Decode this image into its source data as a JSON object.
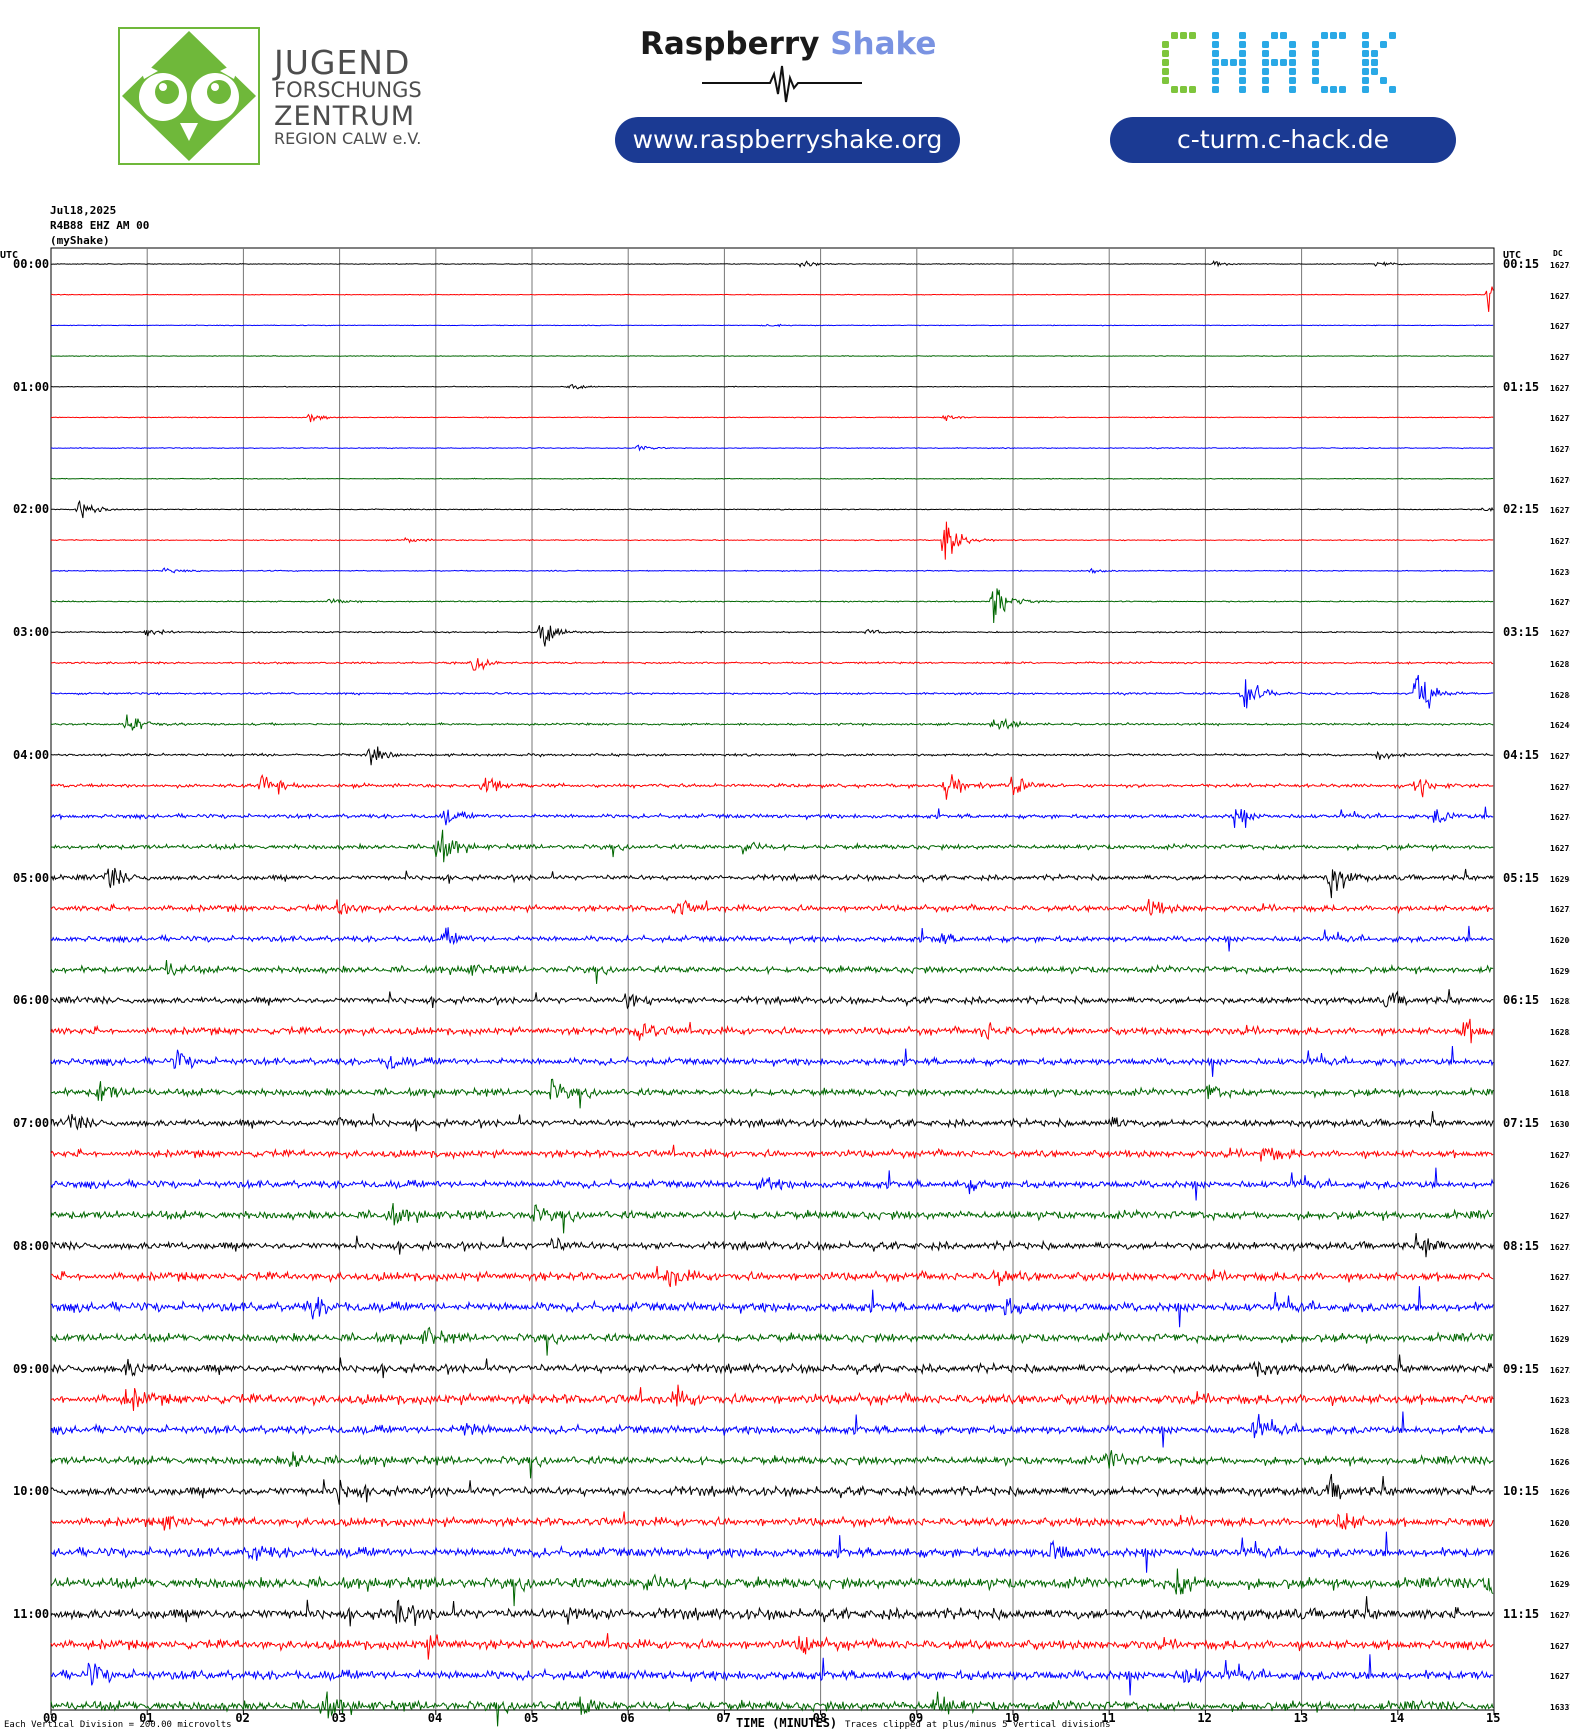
{
  "header": {
    "jfz": {
      "line1": "JUGEND",
      "line2": "FORSCHUNGS",
      "line3": "ZENTRUM",
      "line4": "REGION CALW e.V."
    },
    "raspberry": {
      "word1": "Raspberry",
      "word2": "Shake",
      "url": "www.raspberryshake.org"
    },
    "chack": {
      "logo_text": "CHACK",
      "url": "c-turm.c-hack.de"
    },
    "colors": {
      "jfz_green": "#6fb83a",
      "rs_blue": "#7a93e2",
      "pill_blue": "#1b3a93",
      "chack_green": "#7ec53c",
      "chack_cyan": "#2aa9e6"
    }
  },
  "plot_info": {
    "date": "Jul18,2025",
    "station": "R4B88 EHZ AM 00",
    "network": "(myShake)",
    "utc_left": "UTC",
    "utc_right": "UTC",
    "dc_header": "DC"
  },
  "footer": {
    "scale_note": "Each Vertical Division =  200.00 microvolts",
    "x_title": "TIME (MINUTES)",
    "clip_note": "Traces clipped at plus/minus 5 vertical divisions"
  },
  "chart_data": {
    "type": "helicorder",
    "x_ticks": [
      "00",
      "01",
      "02",
      "03",
      "04",
      "05",
      "06",
      "07",
      "08",
      "09",
      "10",
      "11",
      "12",
      "13",
      "14",
      "15"
    ],
    "x_range_minutes": [
      0,
      15
    ],
    "line_duration_minutes": 15,
    "trace_colors": [
      "#000000",
      "#ff0000",
      "#0000ff",
      "#006600"
    ],
    "left_time_labels": [
      "00:00",
      "01:00",
      "02:00",
      "03:00",
      "04:00",
      "05:00",
      "06:00",
      "07:00",
      "08:00",
      "09:00",
      "10:00",
      "11:00"
    ],
    "right_time_labels": [
      "00:15",
      "01:15",
      "02:15",
      "03:15",
      "04:15",
      "05:15",
      "06:15",
      "07:15",
      "08:15",
      "09:15",
      "10:15",
      "11:15"
    ],
    "dc_offsets": [
      "16275",
      "16275",
      "16277",
      "16277",
      "16275",
      "16277",
      "16276",
      "16276",
      "16277",
      "16278",
      "16236",
      "16279",
      "16279",
      "16281",
      "16284",
      "16246",
      "16279",
      "16276",
      "16274",
      "16275",
      "16298",
      "16273",
      "16206",
      "16290",
      "16282",
      "16283",
      "16272",
      "16185",
      "16301",
      "16270",
      "16268",
      "16276",
      "16272",
      "16273",
      "16272",
      "16291",
      "16272",
      "16235",
      "16285",
      "16268",
      "16260",
      "16205",
      "16263",
      "16294",
      "16270",
      "16271",
      "16277",
      "16337"
    ],
    "noise_level": [
      0.3,
      0.3,
      0.3,
      0.3,
      0.3,
      0.35,
      0.35,
      0.35,
      0.4,
      0.45,
      0.45,
      0.5,
      0.6,
      0.8,
      0.8,
      0.9,
      1.0,
      1.5,
      1.8,
      2.0,
      2.2,
      2.5,
      2.5,
      2.8,
      2.8,
      3.0,
      3.0,
      3.0,
      3.0,
      3.0,
      3.2,
      3.5,
      3.2,
      3.5,
      4.0,
      3.5,
      3.5,
      4.0,
      3.5,
      3.5,
      3.8,
      3.5,
      4.0,
      4.5,
      4.5,
      3.8,
      4.0,
      4.0
    ],
    "events": [
      {
        "line": 0,
        "minute": 7.8,
        "amp": 3
      },
      {
        "line": 0,
        "minute": 12.1,
        "amp": 3
      },
      {
        "line": 0,
        "minute": 13.8,
        "amp": 3
      },
      {
        "line": 1,
        "minute": 14.95,
        "amp": 12
      },
      {
        "line": 2,
        "minute": 7.4,
        "amp": 2
      },
      {
        "line": 4,
        "minute": 5.4,
        "amp": 3
      },
      {
        "line": 5,
        "minute": 2.7,
        "amp": 4
      },
      {
        "line": 5,
        "minute": 9.3,
        "amp": 3
      },
      {
        "line": 6,
        "minute": 6.1,
        "amp": 3
      },
      {
        "line": 8,
        "minute": 0.3,
        "amp": 14
      },
      {
        "line": 8,
        "minute": 14.9,
        "amp": 2
      },
      {
        "line": 9,
        "minute": 9.3,
        "amp": 28
      },
      {
        "line": 9,
        "minute": 3.7,
        "amp": 3
      },
      {
        "line": 10,
        "minute": 1.2,
        "amp": 3
      },
      {
        "line": 10,
        "minute": 10.8,
        "amp": 3
      },
      {
        "line": 11,
        "minute": 9.8,
        "amp": 26
      },
      {
        "line": 11,
        "minute": 2.9,
        "amp": 3
      },
      {
        "line": 12,
        "minute": 5.1,
        "amp": 16
      },
      {
        "line": 12,
        "minute": 1.0,
        "amp": 4
      },
      {
        "line": 12,
        "minute": 8.5,
        "amp": 3
      },
      {
        "line": 13,
        "minute": 4.4,
        "amp": 8
      },
      {
        "line": 14,
        "minute": 12.4,
        "amp": 24
      },
      {
        "line": 14,
        "minute": 14.2,
        "amp": 30
      },
      {
        "line": 15,
        "minute": 0.8,
        "amp": 12
      },
      {
        "line": 15,
        "minute": 9.8,
        "amp": 10
      },
      {
        "line": 16,
        "minute": 3.3,
        "amp": 9
      },
      {
        "line": 16,
        "minute": 13.8,
        "amp": 5
      },
      {
        "line": 17,
        "minute": 2.2,
        "amp": 18
      },
      {
        "line": 17,
        "minute": 4.5,
        "amp": 14
      },
      {
        "line": 17,
        "minute": 9.3,
        "amp": 18
      },
      {
        "line": 17,
        "minute": 10.0,
        "amp": 14
      },
      {
        "line": 17,
        "minute": 14.2,
        "amp": 10
      },
      {
        "line": 18,
        "minute": 4.1,
        "amp": 8
      },
      {
        "line": 18,
        "minute": 12.3,
        "amp": 10
      },
      {
        "line": 18,
        "minute": 14.4,
        "amp": 8
      },
      {
        "line": 19,
        "minute": 4.0,
        "amp": 22
      },
      {
        "line": 19,
        "minute": 7.2,
        "amp": 8
      },
      {
        "line": 20,
        "minute": 0.6,
        "amp": 12
      },
      {
        "line": 20,
        "minute": 13.3,
        "amp": 20
      },
      {
        "line": 21,
        "minute": 3.0,
        "amp": 10
      },
      {
        "line": 21,
        "minute": 6.5,
        "amp": 8
      },
      {
        "line": 21,
        "minute": 11.4,
        "amp": 10
      },
      {
        "line": 22,
        "minute": 4.1,
        "amp": 8
      },
      {
        "line": 22,
        "minute": 9.2,
        "amp": 6
      },
      {
        "line": 23,
        "minute": 1.2,
        "amp": 8
      },
      {
        "line": 23,
        "minute": 4.3,
        "amp": 6
      },
      {
        "line": 24,
        "minute": 6.0,
        "amp": 10
      },
      {
        "line": 24,
        "minute": 13.9,
        "amp": 8
      },
      {
        "line": 25,
        "minute": 6.1,
        "amp": 12
      },
      {
        "line": 25,
        "minute": 9.7,
        "amp": 10
      },
      {
        "line": 25,
        "minute": 14.7,
        "amp": 12
      },
      {
        "line": 26,
        "minute": 1.3,
        "amp": 10
      },
      {
        "line": 26,
        "minute": 3.5,
        "amp": 8
      },
      {
        "line": 27,
        "minute": 0.5,
        "amp": 12
      },
      {
        "line": 27,
        "minute": 5.2,
        "amp": 10
      },
      {
        "line": 27,
        "minute": 12.0,
        "amp": 8
      },
      {
        "line": 28,
        "minute": 0.2,
        "amp": 8
      },
      {
        "line": 28,
        "minute": 3.0,
        "amp": 6
      },
      {
        "line": 28,
        "minute": 11.0,
        "amp": 6
      },
      {
        "line": 29,
        "minute": 12.6,
        "amp": 8
      },
      {
        "line": 30,
        "minute": 7.4,
        "amp": 6
      },
      {
        "line": 30,
        "minute": 9.5,
        "amp": 6
      },
      {
        "line": 31,
        "minute": 3.5,
        "amp": 10
      },
      {
        "line": 31,
        "minute": 5.0,
        "amp": 8
      },
      {
        "line": 32,
        "minute": 5.2,
        "amp": 8
      },
      {
        "line": 32,
        "minute": 14.3,
        "amp": 10
      },
      {
        "line": 33,
        "minute": 6.4,
        "amp": 10
      },
      {
        "line": 33,
        "minute": 9.8,
        "amp": 8
      },
      {
        "line": 34,
        "minute": 2.7,
        "amp": 12
      },
      {
        "line": 34,
        "minute": 9.9,
        "amp": 8
      },
      {
        "line": 35,
        "minute": 3.9,
        "amp": 8
      },
      {
        "line": 36,
        "minute": 0.8,
        "amp": 8
      },
      {
        "line": 36,
        "minute": 12.5,
        "amp": 8
      },
      {
        "line": 37,
        "minute": 0.8,
        "amp": 12
      },
      {
        "line": 37,
        "minute": 6.5,
        "amp": 8
      },
      {
        "line": 38,
        "minute": 4.3,
        "amp": 8
      },
      {
        "line": 38,
        "minute": 12.5,
        "amp": 8
      },
      {
        "line": 39,
        "minute": 2.5,
        "amp": 10
      },
      {
        "line": 39,
        "minute": 11.0,
        "amp": 10
      },
      {
        "line": 40,
        "minute": 3.0,
        "amp": 12
      },
      {
        "line": 40,
        "minute": 13.3,
        "amp": 10
      },
      {
        "line": 41,
        "minute": 1.2,
        "amp": 8
      },
      {
        "line": 41,
        "minute": 13.4,
        "amp": 12
      },
      {
        "line": 42,
        "minute": 2.1,
        "amp": 10
      },
      {
        "line": 42,
        "minute": 10.4,
        "amp": 12
      },
      {
        "line": 43,
        "minute": 6.2,
        "amp": 10
      },
      {
        "line": 43,
        "minute": 11.7,
        "amp": 12
      },
      {
        "line": 43,
        "minute": 14.9,
        "amp": 14
      },
      {
        "line": 44,
        "minute": 3.6,
        "amp": 14
      },
      {
        "line": 44,
        "minute": 5.4,
        "amp": 10
      },
      {
        "line": 45,
        "minute": 3.9,
        "amp": 10
      },
      {
        "line": 45,
        "minute": 7.8,
        "amp": 10
      },
      {
        "line": 46,
        "minute": 0.4,
        "amp": 12
      },
      {
        "line": 46,
        "minute": 11.8,
        "amp": 10
      },
      {
        "line": 47,
        "minute": 2.8,
        "amp": 14
      },
      {
        "line": 47,
        "minute": 9.2,
        "amp": 14
      },
      {
        "line": 47,
        "minute": 5.5,
        "amp": 10
      }
    ]
  }
}
